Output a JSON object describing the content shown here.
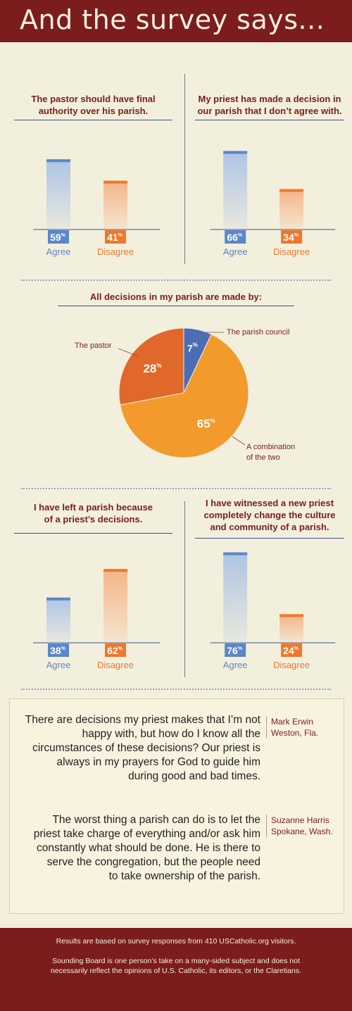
{
  "header": {
    "title": "And the survey says..."
  },
  "chart_data": [
    {
      "type": "bar",
      "title": "The pastor should have final authority over his parish.",
      "title_lines": [
        "The pastor should have final",
        "authority over his parish."
      ],
      "categories": [
        "Agree",
        "Disagree"
      ],
      "values": [
        59,
        41
      ],
      "colors": [
        "#5b86c9",
        "#f0782a"
      ]
    },
    {
      "type": "bar",
      "title": "My priest has made a decision in our parish that I don't agree with.",
      "title_lines": [
        "My priest has made a decision in",
        "our parish that I don’t agree with."
      ],
      "categories": [
        "Agree",
        "Disagree"
      ],
      "values": [
        66,
        34
      ],
      "colors": [
        "#5b86c9",
        "#f0782a"
      ]
    },
    {
      "type": "pie",
      "title": "All decisions in my parish are made by:",
      "title_lines": [
        "All decisions in my parish are made by:"
      ],
      "categories": [
        "The parish council",
        "A combination of the two",
        "The pastor"
      ],
      "values": [
        7,
        65,
        28
      ],
      "colors": [
        "#4a6db4",
        "#f39a2c",
        "#e0682a"
      ]
    },
    {
      "type": "bar",
      "title": "I have left a parish because of a priest's decisions.",
      "title_lines": [
        "I have left a parish because",
        "of a priest’s decisions."
      ],
      "categories": [
        "Agree",
        "Disagree"
      ],
      "values": [
        38,
        62
      ],
      "colors": [
        "#5b86c9",
        "#f0782a"
      ]
    },
    {
      "type": "bar",
      "title": "I have witnessed a new priest completely change the culture and community of a parish.",
      "title_lines": [
        "I have witnessed a new priest",
        "completely change the culture",
        "and community of a parish."
      ],
      "categories": [
        "Agree",
        "Disagree"
      ],
      "values": [
        76,
        24
      ],
      "colors": [
        "#5b86c9",
        "#f0782a"
      ]
    }
  ],
  "pie_labels": {
    "council": "The parish council",
    "pastor": "The pastor",
    "combo_1": "A combination",
    "combo_2": "of the two"
  },
  "percent_sign": "%",
  "quotes": [
    {
      "lines": [
        "There are decisions my priest makes that I’m not",
        "happy with, but how do I know all the",
        "circumstances of these decisions? Our priest is",
        "always in my prayers for God to guide him",
        "during good and bad times."
      ],
      "author": "Mark Erwin",
      "place": "Weston, Fla."
    },
    {
      "lines": [
        "The worst thing a parish can do is to let the",
        "priest take charge of everything and/or ask him",
        "constantly what should be done. He is there to",
        "serve the congregation, but the people need",
        "to take ownership of the parish."
      ],
      "author": "Suzanne Harris",
      "place": "Spokane, Wash."
    }
  ],
  "footer": {
    "line1": "Results are based on survey responses from 410 USCatholic.org visitors.",
    "line2": "Sounding Board is one person’s take on a many-sided subject and does not",
    "line3": "necessarily reflect the opinions of U.S. Catholic, its editors, or the Claretians."
  }
}
